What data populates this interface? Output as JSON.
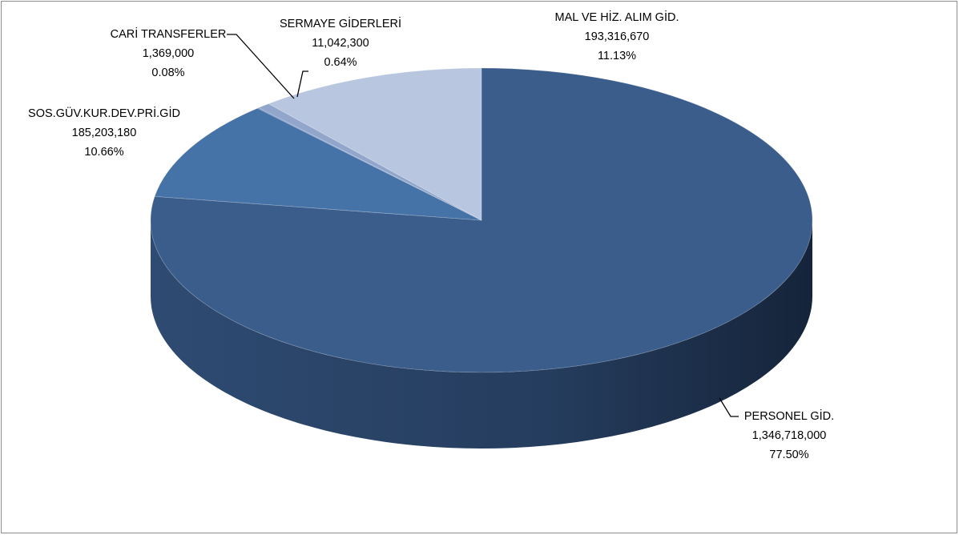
{
  "chart_data": {
    "type": "pie3d",
    "categories": [
      "PERSONEL GİD.",
      "SOS.GÜV.KUR.DEV.PRİ.GİD",
      "CARİ TRANSFERLER",
      "SERMAYE GİDERLERİ",
      "MAL VE HİZ. ALIM GİD."
    ],
    "values": [
      1346718000,
      185203180,
      1369000,
      11042300,
      193316670
    ],
    "value_labels": [
      "1,346,718,000",
      "185,203,180",
      "1,369,000",
      "11,042,300",
      "193,316,670"
    ],
    "percentages": [
      77.5,
      10.66,
      0.08,
      0.64,
      11.13
    ],
    "percentage_labels": [
      "77.50%",
      "10.66%",
      "0.08%",
      "0.64%",
      "11.13%"
    ],
    "colors": [
      "#3b5d8b",
      "#4572a7",
      "#6a8cc0",
      "#92a6cb",
      "#b9c6df"
    ]
  }
}
